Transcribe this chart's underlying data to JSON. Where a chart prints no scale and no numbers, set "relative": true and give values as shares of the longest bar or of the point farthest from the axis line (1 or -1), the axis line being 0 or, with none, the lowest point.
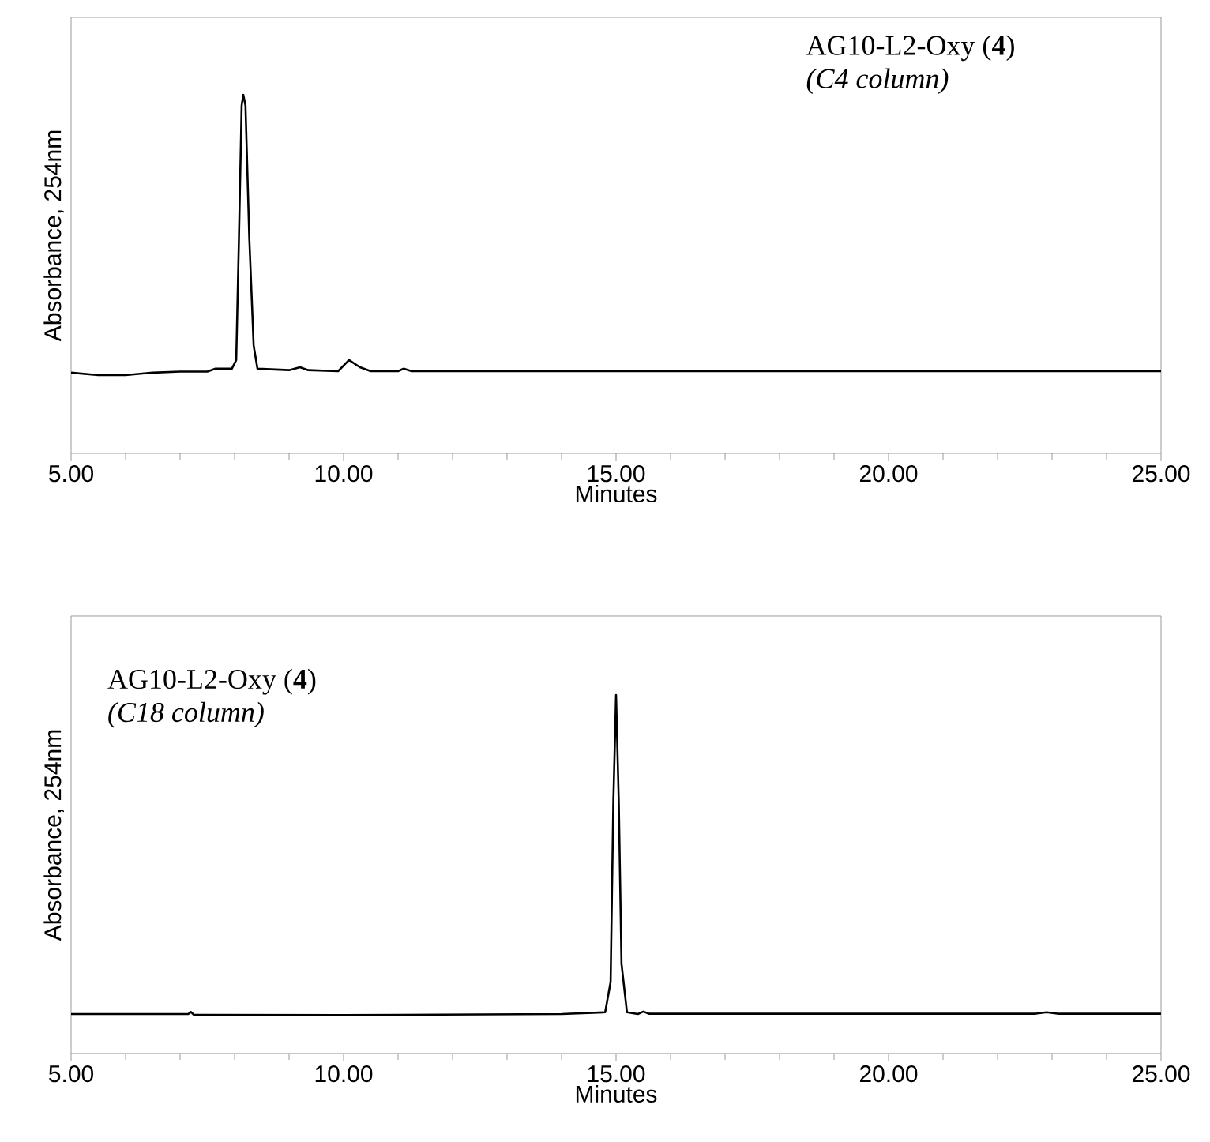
{
  "chart_data": [
    {
      "type": "line",
      "relative": true,
      "xlabel": "Minutes",
      "ylabel": "Absorbance, 254nm",
      "xlim": [
        5,
        25
      ],
      "xticks": [
        {
          "value": 5,
          "label": "5.00"
        },
        {
          "value": 10,
          "label": "10.00"
        },
        {
          "value": 15,
          "label": "15.00"
        },
        {
          "value": 20,
          "label": "20.00"
        },
        {
          "value": 25,
          "label": "25.00"
        }
      ],
      "annotations": [
        "AG10-L2-Oxy (**4**)",
        "*(C4 column)*"
      ],
      "marker": "none",
      "line_style": "solid",
      "series": [
        {
          "color": "#000000",
          "x": [
            5.0,
            5.5,
            6.0,
            6.5,
            7.0,
            7.5,
            7.65,
            7.95,
            8.03,
            8.08,
            8.13,
            8.16,
            8.2,
            8.27,
            8.35,
            8.42,
            9.0,
            9.2,
            9.35,
            9.9,
            10.1,
            10.3,
            10.5,
            11.0,
            11.1,
            11.25,
            12.0,
            15.0,
            20.0,
            25.0
          ],
          "values": [
            0.225,
            0.218,
            0.218,
            0.225,
            0.228,
            0.228,
            0.236,
            0.236,
            0.26,
            0.6,
            0.97,
            1.0,
            0.97,
            0.6,
            0.3,
            0.236,
            0.232,
            0.24,
            0.232,
            0.229,
            0.26,
            0.24,
            0.229,
            0.229,
            0.236,
            0.229,
            0.229,
            0.229,
            0.229,
            0.229
          ]
        }
      ]
    },
    {
      "type": "line",
      "relative": true,
      "xlabel": "Minutes",
      "ylabel": "Absorbance, 254nm",
      "xlim": [
        5,
        25
      ],
      "xticks": [
        {
          "value": 5,
          "label": "5.00"
        },
        {
          "value": 10,
          "label": "10.00"
        },
        {
          "value": 15,
          "label": "15.00"
        },
        {
          "value": 20,
          "label": "20.00"
        },
        {
          "value": 25,
          "label": "25.00"
        }
      ],
      "annotations": [
        "AG10-L2-Oxy (**4**)",
        "*(C18 column)*"
      ],
      "marker": "none",
      "line_style": "solid",
      "series": [
        {
          "color": "#000000",
          "x": [
            5.0,
            7.15,
            7.2,
            7.25,
            10.0,
            14.0,
            14.8,
            14.9,
            14.95,
            15.0,
            15.05,
            15.1,
            15.2,
            15.4,
            15.5,
            15.6,
            18.0,
            22.7,
            22.9,
            23.1,
            25.0
          ],
          "values": [
            0.11,
            0.11,
            0.116,
            0.108,
            0.107,
            0.11,
            0.115,
            0.2,
            0.7,
            1.0,
            0.7,
            0.25,
            0.115,
            0.11,
            0.117,
            0.111,
            0.111,
            0.111,
            0.115,
            0.111,
            0.111
          ]
        }
      ]
    }
  ]
}
